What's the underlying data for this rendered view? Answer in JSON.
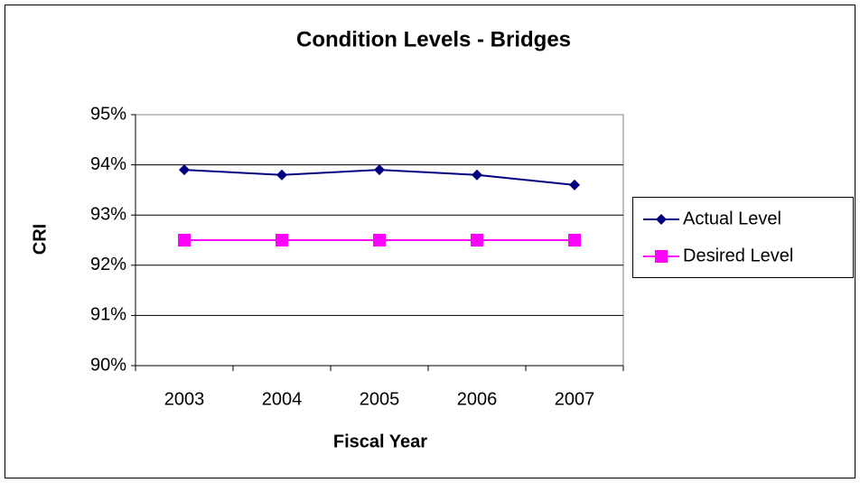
{
  "chart_data": {
    "type": "line",
    "title": "Condition Levels - Bridges",
    "x_label": "Fiscal Year",
    "y_label": "CRI",
    "categories": [
      "2003",
      "2004",
      "2005",
      "2006",
      "2007"
    ],
    "series": [
      {
        "name": "Actual Level",
        "color": "#000080",
        "marker": "diamond",
        "values": [
          93.9,
          93.8,
          93.9,
          93.8,
          93.6
        ]
      },
      {
        "name": "Desired Level",
        "color": "#ff00ff",
        "marker": "square",
        "values": [
          92.5,
          92.5,
          92.5,
          92.5,
          92.5
        ]
      }
    ],
    "ylim": [
      90,
      95
    ],
    "yticks": [
      {
        "value": 90,
        "label": "90%"
      },
      {
        "value": 91,
        "label": "91%"
      },
      {
        "value": 92,
        "label": "92%"
      },
      {
        "value": 93,
        "label": "93%"
      },
      {
        "value": 94,
        "label": "94%"
      },
      {
        "value": 95,
        "label": "95%"
      }
    ],
    "grid": true,
    "legend": "right"
  }
}
